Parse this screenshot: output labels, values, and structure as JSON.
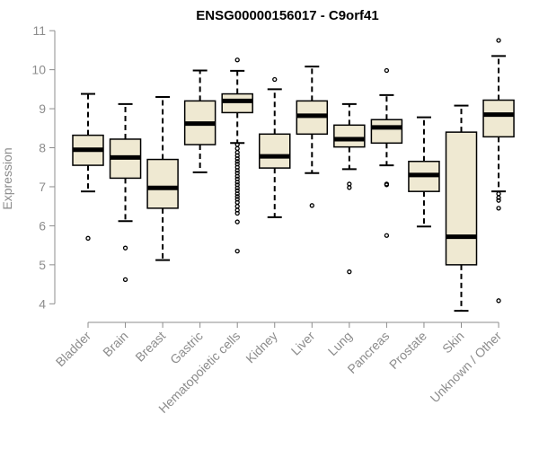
{
  "chart_data": {
    "type": "box",
    "title": "ENSG00000156017 - C9orf41",
    "xlabel": "",
    "ylabel": "Expression",
    "ylim": [
      3.8,
      11.05
    ],
    "yticks": [
      4,
      5,
      6,
      7,
      8,
      9,
      10,
      11
    ],
    "grid": false,
    "colors": {
      "box_fill": "#efe9d2",
      "box_stroke": "#000000",
      "median": "#000000",
      "axis": "#8c8c8c",
      "tick_label": "#8c8c8c",
      "title": "#000000"
    },
    "categories": [
      "Bladder",
      "Brain",
      "Breast",
      "Gastric",
      "Hematopoietic cells",
      "Kidney",
      "Liver",
      "Lung",
      "Pancreas",
      "Prostate",
      "Skin",
      "Unknown / Other"
    ],
    "boxes": [
      {
        "label": "Bladder",
        "whisker_low": 6.88,
        "q1": 7.55,
        "median": 7.95,
        "q3": 8.32,
        "whisker_high": 9.38,
        "outliers": [
          5.68
        ]
      },
      {
        "label": "Brain",
        "whisker_low": 6.12,
        "q1": 7.22,
        "median": 7.75,
        "q3": 8.22,
        "whisker_high": 9.12,
        "outliers": [
          5.43,
          4.62
        ]
      },
      {
        "label": "Breast",
        "whisker_low": 5.12,
        "q1": 6.45,
        "median": 6.97,
        "q3": 7.7,
        "whisker_high": 9.3,
        "outliers": []
      },
      {
        "label": "Gastric",
        "whisker_low": 7.37,
        "q1": 8.08,
        "median": 8.62,
        "q3": 9.2,
        "whisker_high": 9.98,
        "outliers": []
      },
      {
        "label": "Hematopoietic cells",
        "whisker_low": 8.12,
        "q1": 8.9,
        "median": 9.2,
        "q3": 9.38,
        "whisker_high": 9.97,
        "outliers": [
          10.25,
          8.08,
          7.98,
          7.88,
          7.8,
          7.72,
          7.65,
          7.58,
          7.5,
          7.42,
          7.35,
          7.27,
          7.2,
          7.12,
          7.05,
          6.97,
          6.9,
          6.82,
          6.75,
          6.68,
          6.6,
          6.5,
          6.4,
          6.32,
          6.1,
          5.35
        ]
      },
      {
        "label": "Kidney",
        "whisker_low": 6.22,
        "q1": 7.48,
        "median": 7.78,
        "q3": 8.35,
        "whisker_high": 9.5,
        "outliers": [
          9.75
        ]
      },
      {
        "label": "Liver",
        "whisker_low": 7.35,
        "q1": 8.35,
        "median": 8.82,
        "q3": 9.2,
        "whisker_high": 10.08,
        "outliers": [
          6.52
        ]
      },
      {
        "label": "Lung",
        "whisker_low": 7.45,
        "q1": 8.02,
        "median": 8.22,
        "q3": 8.58,
        "whisker_high": 9.12,
        "outliers": [
          7.07,
          6.98,
          4.82
        ]
      },
      {
        "label": "Pancreas",
        "whisker_low": 7.55,
        "q1": 8.12,
        "median": 8.52,
        "q3": 8.72,
        "whisker_high": 9.35,
        "outliers": [
          9.98,
          7.07,
          7.05,
          5.75
        ]
      },
      {
        "label": "Prostate",
        "whisker_low": 5.98,
        "q1": 6.88,
        "median": 7.3,
        "q3": 7.65,
        "whisker_high": 8.78,
        "outliers": []
      },
      {
        "label": "Skin",
        "whisker_low": 3.82,
        "q1": 5.0,
        "median": 5.72,
        "q3": 8.4,
        "whisker_high": 9.08,
        "outliers": []
      },
      {
        "label": "Unknown / Other",
        "whisker_low": 6.88,
        "q1": 8.28,
        "median": 8.85,
        "q3": 9.22,
        "whisker_high": 10.35,
        "outliers": [
          10.75,
          6.82,
          6.72,
          6.65,
          6.45,
          4.08
        ]
      }
    ]
  }
}
